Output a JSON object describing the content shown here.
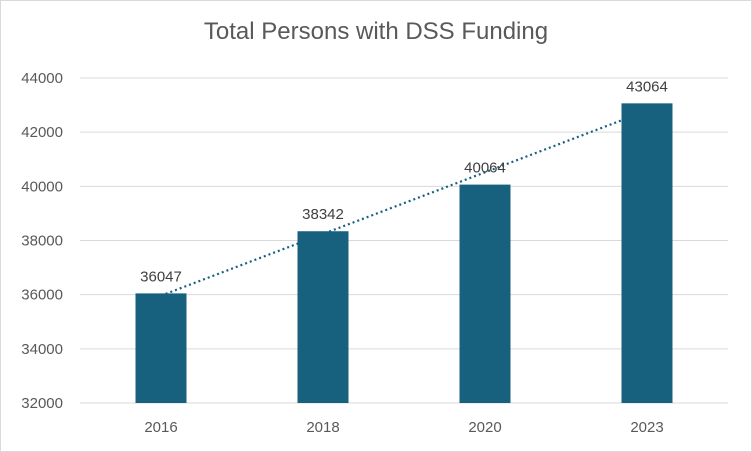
{
  "chart_data": {
    "type": "bar",
    "title": "Total Persons with DSS Funding",
    "xlabel": "",
    "ylabel": "",
    "categories": [
      "2016",
      "2018",
      "2020",
      "2023"
    ],
    "values": [
      36047,
      38342,
      40064,
      43064
    ],
    "ylim": [
      32000,
      44000
    ],
    "yticks": [
      32000,
      34000,
      36000,
      38000,
      40000,
      42000,
      44000
    ],
    "grid": true,
    "legend": "none",
    "trendline": {
      "type": "linear",
      "style": "dotted"
    },
    "colors": {
      "bar": "#17607e",
      "trendline": "#17607e",
      "grid": "#d9d9d9"
    }
  }
}
